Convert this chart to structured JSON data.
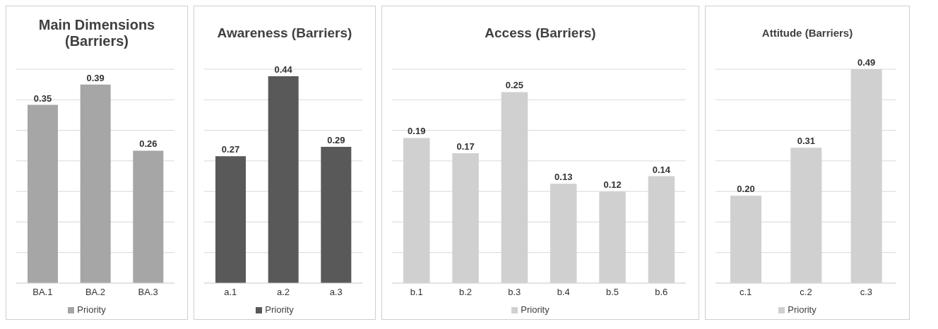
{
  "chart_data": [
    {
      "type": "bar",
      "title": "Main Dimensions (Barriers)",
      "categories": [
        "BA.1",
        "BA.2",
        "BA.3"
      ],
      "series": [
        {
          "name": "Priority",
          "color": "#a6a6a6",
          "values": [
            0.35,
            0.39,
            0.26
          ],
          "value_labels": [
            "0.35",
            "0.39",
            "0.26"
          ]
        }
      ],
      "grid": "y",
      "legend": "bottom",
      "tick_labels": "x"
    },
    {
      "type": "bar",
      "title": "Awareness (Barriers)",
      "categories": [
        "a.1",
        "a.2",
        "a.3"
      ],
      "series": [
        {
          "name": "Priority",
          "color": "#595959",
          "values": [
            0.27,
            0.44,
            0.29
          ],
          "value_labels": [
            "0.27",
            "0.44",
            "0.29"
          ]
        }
      ],
      "grid": "y",
      "legend": "bottom",
      "tick_labels": "x"
    },
    {
      "type": "bar",
      "title": "Access (Barriers)",
      "categories": [
        "b.1",
        "b.2",
        "b.3",
        "b.4",
        "b.5",
        "b.6"
      ],
      "series": [
        {
          "name": "Priority",
          "color": "#d0d0d0",
          "values": [
            0.19,
            0.17,
            0.25,
            0.13,
            0.12,
            0.14
          ],
          "value_labels": [
            "0.19",
            "0.17",
            "0.25",
            "0.13",
            "0.12",
            "0.14"
          ]
        }
      ],
      "grid": "y",
      "legend": "bottom",
      "tick_labels": "x"
    },
    {
      "type": "bar",
      "title": "Attitude (Barriers)",
      "categories": [
        "c.1",
        "c.2",
        "c.3"
      ],
      "series": [
        {
          "name": "Priority",
          "color": "#d0d0d0",
          "values": [
            0.2,
            0.31,
            0.49
          ],
          "value_labels": [
            "0.20",
            "0.31",
            "0.49"
          ]
        }
      ],
      "grid": "y",
      "legend": "bottom",
      "tick_labels": "x"
    }
  ]
}
